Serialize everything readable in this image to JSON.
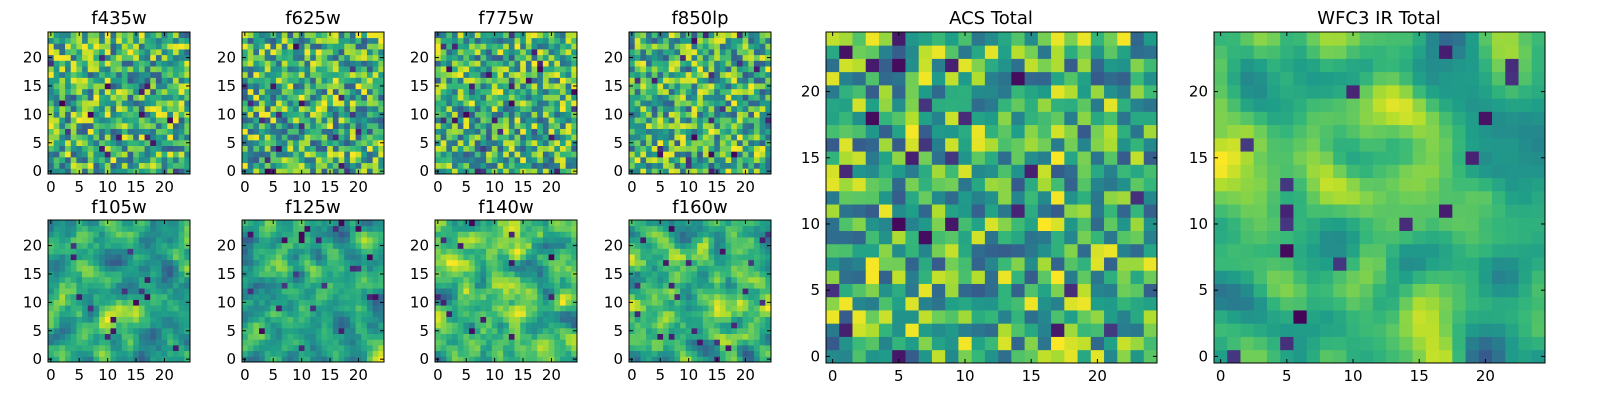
{
  "chart_data": [
    {
      "type": "heatmap",
      "title": "f435w",
      "grid": "25x25",
      "colormap": "viridis",
      "xlim": [
        0,
        24
      ],
      "ylim": [
        0,
        24
      ],
      "xticks": [
        0,
        5,
        10,
        15,
        20
      ],
      "yticks": [
        0,
        5,
        10,
        15,
        20
      ],
      "texture": 1,
      "seed": 11
    },
    {
      "type": "heatmap",
      "title": "f625w",
      "grid": "25x25",
      "colormap": "viridis",
      "xlim": [
        0,
        24
      ],
      "ylim": [
        0,
        24
      ],
      "xticks": [
        0,
        5,
        10,
        15,
        20
      ],
      "yticks": [
        0,
        5,
        10,
        15,
        20
      ],
      "texture": 1,
      "seed": 22
    },
    {
      "type": "heatmap",
      "title": "f775w",
      "grid": "25x25",
      "colormap": "viridis",
      "xlim": [
        0,
        24
      ],
      "ylim": [
        0,
        24
      ],
      "xticks": [
        0,
        5,
        10,
        15,
        20
      ],
      "yticks": [
        0,
        5,
        10,
        15,
        20
      ],
      "texture": 1,
      "seed": 33
    },
    {
      "type": "heatmap",
      "title": "f850lp",
      "grid": "25x25",
      "colormap": "viridis",
      "xlim": [
        0,
        24
      ],
      "ylim": [
        0,
        24
      ],
      "xticks": [
        0,
        5,
        10,
        15,
        20
      ],
      "yticks": [
        0,
        5,
        10,
        15,
        20
      ],
      "texture": 1,
      "seed": 44
    },
    {
      "type": "heatmap",
      "title": "f105w",
      "grid": "25x25",
      "colormap": "viridis",
      "xlim": [
        0,
        24
      ],
      "ylim": [
        0,
        24
      ],
      "xticks": [
        0,
        5,
        10,
        15,
        20
      ],
      "yticks": [
        0,
        5,
        10,
        15,
        20
      ],
      "texture": 2,
      "seed": 55
    },
    {
      "type": "heatmap",
      "title": "f125w",
      "grid": "25x25",
      "colormap": "viridis",
      "xlim": [
        0,
        24
      ],
      "ylim": [
        0,
        24
      ],
      "xticks": [
        0,
        5,
        10,
        15,
        20
      ],
      "yticks": [
        0,
        5,
        10,
        15,
        20
      ],
      "texture": 2,
      "seed": 66
    },
    {
      "type": "heatmap",
      "title": "f140w",
      "grid": "25x25",
      "colormap": "viridis",
      "xlim": [
        0,
        24
      ],
      "ylim": [
        0,
        24
      ],
      "xticks": [
        0,
        5,
        10,
        15,
        20
      ],
      "yticks": [
        0,
        5,
        10,
        15,
        20
      ],
      "texture": 2,
      "seed": 77
    },
    {
      "type": "heatmap",
      "title": "f160w",
      "grid": "25x25",
      "colormap": "viridis",
      "xlim": [
        0,
        24
      ],
      "ylim": [
        0,
        24
      ],
      "xticks": [
        0,
        5,
        10,
        15,
        20
      ],
      "yticks": [
        0,
        5,
        10,
        15,
        20
      ],
      "texture": 2,
      "seed": 88
    },
    {
      "type": "heatmap",
      "title": "ACS Total",
      "grid": "25x25",
      "colormap": "viridis",
      "xlim": [
        0,
        24
      ],
      "ylim": [
        0,
        24
      ],
      "xticks": [
        0,
        5,
        10,
        15,
        20
      ],
      "yticks": [
        0,
        5,
        10,
        15,
        20
      ],
      "texture": 1,
      "seed": 99
    },
    {
      "type": "heatmap",
      "title": "WFC3 IR Total",
      "grid": "25x25",
      "colormap": "viridis",
      "xlim": [
        0,
        24
      ],
      "ylim": [
        0,
        24
      ],
      "xticks": [
        0,
        5,
        10,
        15,
        20
      ],
      "yticks": [
        0,
        5,
        10,
        15,
        20
      ],
      "texture": 3,
      "seed": 111
    }
  ]
}
